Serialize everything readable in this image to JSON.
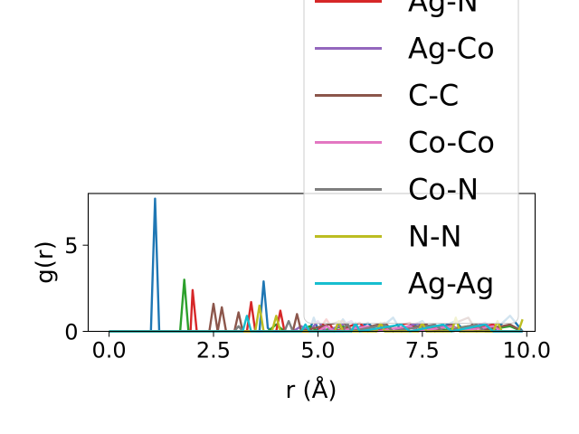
{
  "chart_data": {
    "type": "line",
    "xlabel": "r (Å)",
    "ylabel": "g(r)",
    "xlim": [
      -0.5,
      10.2
    ],
    "ylim": [
      0,
      8
    ],
    "xticks": [
      0.0,
      2.5,
      5.0,
      7.5,
      10.0
    ],
    "xtick_labels": [
      "0.0",
      "2.5",
      "5.0",
      "7.5",
      "10.0"
    ],
    "yticks": [
      0,
      5
    ],
    "ytick_labels": [
      "0",
      "5"
    ],
    "grid": false,
    "legend_placement": "upper-right (extends above plot area)",
    "series": [
      {
        "color": "#1f77b4",
        "points": [
          [
            0,
            0
          ],
          [
            0.9,
            0
          ],
          [
            1.0,
            0
          ],
          [
            1.1,
            7.7
          ],
          [
            1.2,
            0
          ],
          [
            1.3,
            0
          ],
          [
            3.5,
            0
          ],
          [
            3.6,
            0
          ],
          [
            3.7,
            2.9
          ],
          [
            3.8,
            0.2
          ],
          [
            3.9,
            0
          ],
          [
            4.8,
            0
          ],
          [
            4.9,
            0.8
          ],
          [
            5.0,
            0.1
          ],
          [
            5.4,
            0
          ],
          [
            5.6,
            0.7
          ],
          [
            5.8,
            0
          ],
          [
            6.2,
            0.5
          ],
          [
            6.4,
            0
          ],
          [
            6.8,
            0.8
          ],
          [
            7.0,
            0
          ],
          [
            7.5,
            0.6
          ],
          [
            7.7,
            0
          ],
          [
            8.3,
            0.6
          ],
          [
            8.5,
            0
          ],
          [
            9.0,
            0.5
          ],
          [
            9.2,
            0
          ],
          [
            9.6,
            0.9
          ],
          [
            9.9,
            0
          ]
        ]
      },
      {
        "color": "#2ca02c",
        "points": [
          [
            0,
            0
          ],
          [
            1.6,
            0
          ],
          [
            1.7,
            0
          ],
          [
            1.8,
            3.0
          ],
          [
            1.9,
            0
          ],
          [
            2.0,
            0
          ],
          [
            3.8,
            0
          ],
          [
            4.0,
            0.4
          ],
          [
            4.2,
            0
          ],
          [
            4.6,
            0
          ],
          [
            4.8,
            0.3
          ],
          [
            5.0,
            0
          ],
          [
            5.6,
            0.3
          ],
          [
            5.8,
            0
          ],
          [
            6.6,
            0.4
          ],
          [
            6.8,
            0
          ],
          [
            7.6,
            0.4
          ],
          [
            7.8,
            0
          ],
          [
            8.6,
            0.3
          ],
          [
            8.8,
            0
          ],
          [
            9.6,
            0.3
          ],
          [
            9.9,
            0
          ]
        ]
      },
      {
        "color": "#d62728",
        "name": "Ag-N",
        "points": [
          [
            0,
            0
          ],
          [
            1.85,
            0
          ],
          [
            1.95,
            0
          ],
          [
            2.0,
            2.4
          ],
          [
            2.1,
            0
          ],
          [
            2.2,
            0
          ],
          [
            3.3,
            0
          ],
          [
            3.4,
            1.7
          ],
          [
            3.5,
            0
          ],
          [
            4.0,
            0
          ],
          [
            4.1,
            1.2
          ],
          [
            4.2,
            0
          ],
          [
            5.0,
            0
          ],
          [
            5.2,
            0.7
          ],
          [
            5.4,
            0
          ],
          [
            6.0,
            0.5
          ],
          [
            6.2,
            0
          ],
          [
            7.2,
            0.5
          ],
          [
            7.4,
            0
          ],
          [
            8.0,
            0.4
          ],
          [
            8.2,
            0
          ],
          [
            9.2,
            0.4
          ],
          [
            9.4,
            0
          ],
          [
            9.9,
            0
          ]
        ]
      },
      {
        "color": "#9467bd",
        "name": "Ag-Co",
        "points": [
          [
            0,
            0
          ],
          [
            4.4,
            0
          ],
          [
            4.6,
            0.3
          ],
          [
            4.8,
            0
          ],
          [
            5.0,
            0.6
          ],
          [
            5.2,
            0
          ],
          [
            5.8,
            0.6
          ],
          [
            6.0,
            0
          ],
          [
            6.6,
            0.5
          ],
          [
            6.8,
            0
          ],
          [
            7.4,
            0.5
          ],
          [
            7.6,
            0
          ],
          [
            8.2,
            0.4
          ],
          [
            8.4,
            0
          ],
          [
            9.0,
            0.5
          ],
          [
            9.2,
            0
          ],
          [
            9.9,
            0
          ]
        ]
      },
      {
        "color": "#8c564b",
        "name": "C-C",
        "points": [
          [
            0,
            0
          ],
          [
            2.4,
            0
          ],
          [
            2.5,
            1.6
          ],
          [
            2.6,
            0
          ],
          [
            2.7,
            1.4
          ],
          [
            2.8,
            0
          ],
          [
            3.0,
            0
          ],
          [
            3.1,
            1.1
          ],
          [
            3.2,
            0
          ],
          [
            4.4,
            0
          ],
          [
            4.5,
            1.0
          ],
          [
            4.6,
            0
          ],
          [
            5.6,
            0.6
          ],
          [
            5.8,
            0
          ],
          [
            6.6,
            0.5
          ],
          [
            6.8,
            0
          ],
          [
            7.6,
            0.4
          ],
          [
            7.8,
            0
          ],
          [
            8.6,
            0.8
          ],
          [
            8.8,
            0
          ],
          [
            9.6,
            0.4
          ],
          [
            9.9,
            0
          ]
        ]
      },
      {
        "color": "#e377c2",
        "name": "Co-Co",
        "points": [
          [
            0,
            0
          ],
          [
            5.0,
            0
          ],
          [
            5.2,
            0.3
          ],
          [
            5.4,
            0
          ],
          [
            6.2,
            0.3
          ],
          [
            6.4,
            0
          ],
          [
            7.2,
            0.3
          ],
          [
            7.4,
            0
          ],
          [
            8.2,
            0.3
          ],
          [
            8.4,
            0
          ],
          [
            9.2,
            0.3
          ],
          [
            9.4,
            0
          ],
          [
            9.9,
            0
          ]
        ]
      },
      {
        "color": "#7f7f7f",
        "name": "Co-N",
        "points": [
          [
            0,
            0
          ],
          [
            3.0,
            0
          ],
          [
            3.1,
            0.3
          ],
          [
            3.2,
            0
          ],
          [
            4.2,
            0
          ],
          [
            4.3,
            0.6
          ],
          [
            4.4,
            0
          ],
          [
            5.6,
            0
          ],
          [
            5.7,
            0.5
          ],
          [
            5.8,
            0
          ],
          [
            6.6,
            0.4
          ],
          [
            6.8,
            0
          ],
          [
            7.8,
            0.4
          ],
          [
            8.0,
            0
          ],
          [
            8.8,
            0.4
          ],
          [
            9.0,
            0
          ],
          [
            9.9,
            0
          ]
        ]
      },
      {
        "color": "#bcbd22",
        "name": "N-N",
        "points": [
          [
            0,
            0
          ],
          [
            3.5,
            0
          ],
          [
            3.6,
            1.5
          ],
          [
            3.7,
            0
          ],
          [
            3.9,
            0
          ],
          [
            4.0,
            0.9
          ],
          [
            4.1,
            0
          ],
          [
            5.4,
            0
          ],
          [
            5.5,
            0.6
          ],
          [
            5.6,
            0
          ],
          [
            6.4,
            0
          ],
          [
            6.5,
            0.5
          ],
          [
            6.6,
            0
          ],
          [
            7.4,
            0
          ],
          [
            7.5,
            0.5
          ],
          [
            7.6,
            0
          ],
          [
            8.2,
            0
          ],
          [
            8.3,
            0.8
          ],
          [
            8.4,
            0
          ],
          [
            9.2,
            0
          ],
          [
            9.3,
            0.6
          ],
          [
            9.4,
            0
          ],
          [
            9.8,
            0
          ],
          [
            9.9,
            0.7
          ]
        ]
      },
      {
        "color": "#17becf",
        "name": "Ag-Ag",
        "points": [
          [
            0,
            0
          ],
          [
            3.2,
            0
          ],
          [
            3.3,
            0.9
          ],
          [
            3.4,
            0
          ],
          [
            4.6,
            0
          ],
          [
            4.7,
            0.4
          ],
          [
            4.8,
            0
          ],
          [
            5.8,
            0
          ],
          [
            5.9,
            0.5
          ],
          [
            6.0,
            0
          ],
          [
            7.0,
            0.4
          ],
          [
            7.2,
            0
          ],
          [
            8.0,
            0.4
          ],
          [
            8.2,
            0
          ],
          [
            9.0,
            0.4
          ],
          [
            9.2,
            0
          ],
          [
            9.9,
            0
          ]
        ]
      }
    ]
  }
}
